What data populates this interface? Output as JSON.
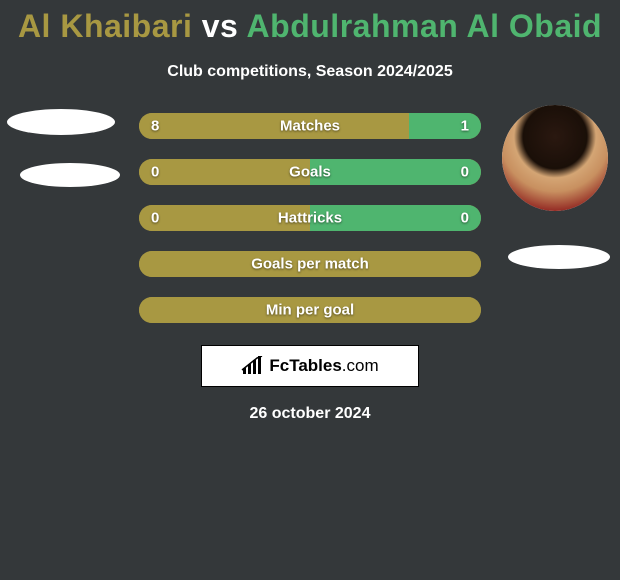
{
  "title": {
    "player1": "Al Khaibari",
    "vs": "vs",
    "player2": "Abdulrahman Al Obaid",
    "player1_color": "#a89842",
    "vs_color": "#ffffff",
    "player2_color": "#4fb56f"
  },
  "subtitle": "Club competitions, Season 2024/2025",
  "background_color": "#34383a",
  "bar_colors": {
    "player1": "#a89842",
    "player2": "#4fb56f"
  },
  "stats": [
    {
      "label": "Matches",
      "left_val": "8",
      "right_val": "1",
      "left_pct": 79,
      "right_pct": 21
    },
    {
      "label": "Goals",
      "left_val": "0",
      "right_val": "0",
      "left_pct": 50,
      "right_pct": 50
    },
    {
      "label": "Hattricks",
      "left_val": "0",
      "right_val": "0",
      "left_pct": 50,
      "right_pct": 50
    },
    {
      "label": "Goals per match",
      "left_val": "",
      "right_val": "",
      "left_pct": 100,
      "right_pct": 0
    },
    {
      "label": "Min per goal",
      "left_val": "",
      "right_val": "",
      "left_pct": 100,
      "right_pct": 0
    }
  ],
  "logo": {
    "brand": "FcTables",
    "domain": ".com"
  },
  "date": "26 october 2024",
  "avatars": {
    "left_has_photo": false,
    "right_has_photo": true
  }
}
